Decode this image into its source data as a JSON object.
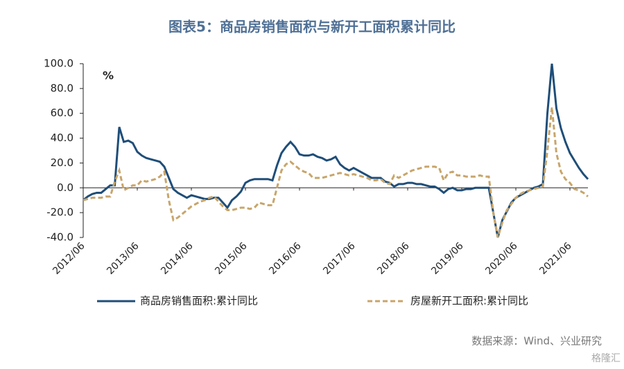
{
  "chart_data": {
    "type": "line",
    "title": "图表5：商品房销售面积与新开工面积累计同比",
    "unit": "%",
    "source": "数据来源：Wind、兴业研究",
    "watermark": "格隆汇",
    "categories": [
      "2012/06",
      null,
      null,
      null,
      null,
      null,
      null,
      null,
      null,
      null,
      null,
      null,
      "2013/06",
      null,
      null,
      null,
      null,
      null,
      null,
      null,
      null,
      null,
      null,
      null,
      "2014/06",
      null,
      null,
      null,
      null,
      null,
      null,
      null,
      null,
      null,
      null,
      null,
      "2015/06",
      null,
      null,
      null,
      null,
      null,
      null,
      null,
      null,
      null,
      null,
      null,
      "2016/06",
      null,
      null,
      null,
      null,
      null,
      null,
      null,
      null,
      null,
      null,
      null,
      "2017/06",
      null,
      null,
      null,
      null,
      null,
      null,
      null,
      null,
      null,
      null,
      null,
      "2018/06",
      null,
      null,
      null,
      null,
      null,
      null,
      null,
      null,
      null,
      null,
      null,
      "2019/06",
      null,
      null,
      null,
      null,
      null,
      null,
      null,
      null,
      null,
      null,
      null,
      "2020/06",
      null,
      null,
      null,
      null,
      null,
      null,
      null,
      null,
      null,
      null,
      null,
      "2021/06",
      null,
      null,
      null,
      null
    ],
    "series": [
      {
        "name": "商品房销售面积:累计同比",
        "color": "#1f4e79",
        "dash": false,
        "values": [
          -10,
          -7,
          -5,
          -4,
          -4,
          -1,
          2,
          2,
          49,
          37,
          38,
          36,
          29,
          26,
          24,
          23,
          22,
          21,
          17,
          8,
          -1,
          -4,
          -6,
          -8,
          -6,
          -7,
          -8,
          -9,
          -9,
          -8,
          -8,
          -12,
          -16,
          -10,
          -7,
          -3,
          4,
          6,
          7,
          7,
          7,
          7,
          6,
          18,
          28,
          33,
          37,
          33,
          27,
          26,
          26,
          27,
          25,
          24,
          22,
          23,
          25,
          19,
          16,
          14,
          16,
          14,
          12,
          10,
          8,
          8,
          8,
          5,
          4,
          1,
          3,
          3,
          4,
          4,
          3,
          3,
          2,
          1,
          1,
          -1,
          -4,
          -1,
          0,
          -2,
          -2,
          -1,
          -1,
          0,
          0,
          0,
          0,
          -20,
          -40,
          -26,
          -19,
          -12,
          -8,
          -6,
          -4,
          -2,
          0,
          1,
          3,
          60,
          100,
          64,
          48,
          37,
          28,
          22,
          16,
          11,
          7
        ]
      },
      {
        "name": "房屋新开工面积:累计同比",
        "color": "#c8a56a",
        "dash": true,
        "values": [
          -10,
          -9,
          -8,
          -8,
          -8,
          -7,
          -7,
          5,
          14,
          -2,
          0,
          2,
          2,
          6,
          5,
          6,
          7,
          9,
          13,
          -10,
          -26,
          -24,
          -21,
          -18,
          -15,
          -13,
          -11,
          -10,
          -8,
          -7,
          -11,
          -15,
          -18,
          -18,
          -17,
          -16,
          -16,
          -17,
          -16,
          -12,
          -13,
          -14,
          -14,
          0,
          14,
          19,
          21,
          18,
          15,
          13,
          12,
          8,
          8,
          8,
          9,
          10,
          11,
          12,
          11,
          10,
          11,
          10,
          9,
          8,
          6,
          6,
          7,
          4,
          3,
          10,
          8,
          10,
          12,
          14,
          15,
          16,
          17,
          17,
          17,
          16,
          6,
          12,
          13,
          10,
          10,
          9,
          9,
          9,
          10,
          9,
          9,
          -20,
          -40,
          -28,
          -18,
          -13,
          -8,
          -5,
          -3,
          -2,
          -1,
          0,
          1,
          30,
          65,
          28,
          13,
          7,
          4,
          -1,
          -2,
          -4,
          -7
        ]
      }
    ],
    "ylim": [
      -40,
      100
    ],
    "yticks": [
      {
        "value": -40,
        "label": "-40.0"
      },
      {
        "value": -20,
        "label": "-20.0"
      },
      {
        "value": 0,
        "label": "0.0"
      },
      {
        "value": 20,
        "label": "20.0"
      },
      {
        "value": 40,
        "label": "40.0"
      },
      {
        "value": 60,
        "label": "60.0"
      },
      {
        "value": 80,
        "label": "80.0"
      },
      {
        "value": 100,
        "label": "100.0"
      }
    ],
    "grid": false
  }
}
